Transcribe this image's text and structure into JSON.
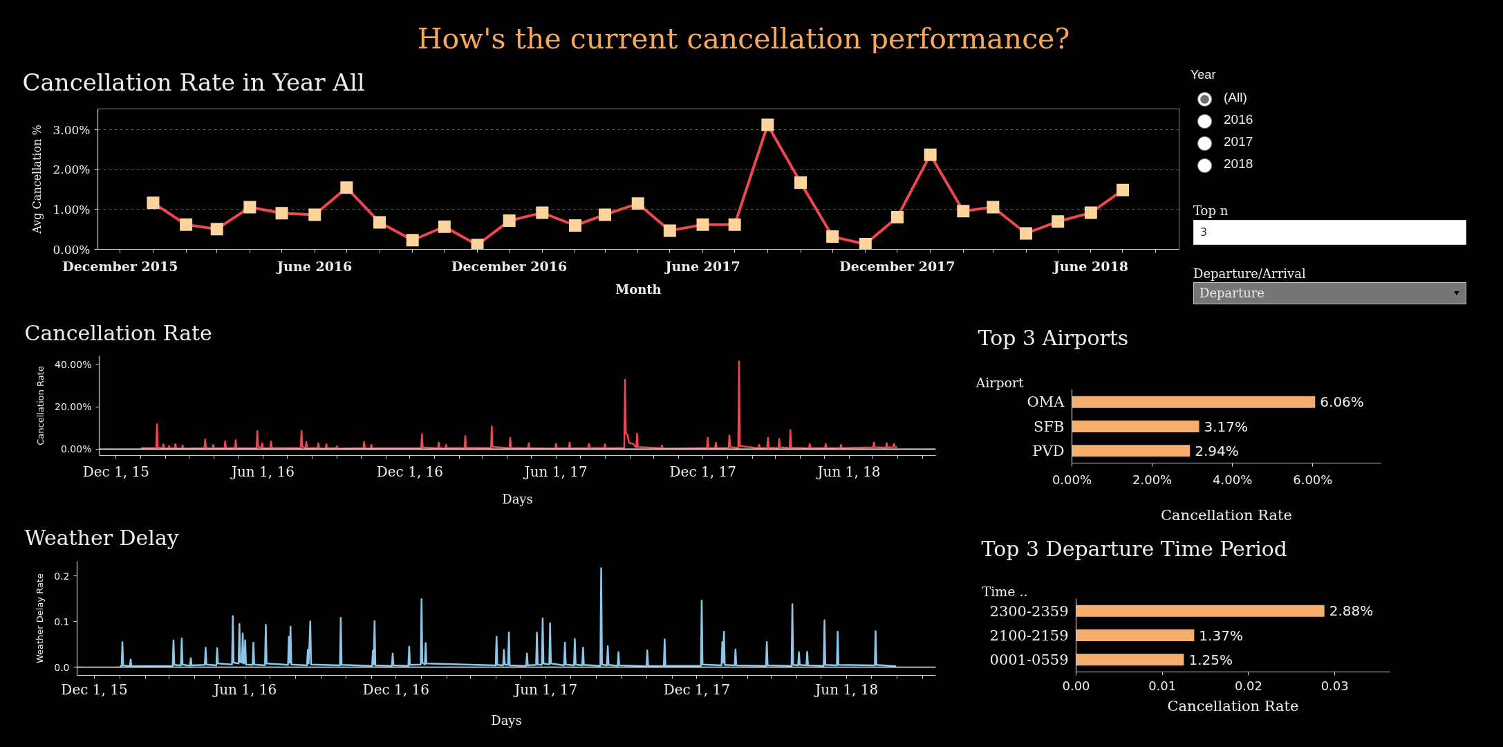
{
  "chart_data": [
    {
      "type": "other",
      "title": "How's the current cancellation performance?"
    },
    {
      "type": "line",
      "title": "Cancellation Rate in Year All",
      "xlabel": "Month",
      "ylabel": "Avg Cancellation %",
      "x": [
        "2016-01",
        "2016-02",
        "2016-03",
        "2016-04",
        "2016-05",
        "2016-06",
        "2016-07",
        "2016-08",
        "2016-09",
        "2016-10",
        "2016-11",
        "2016-12",
        "2017-01",
        "2017-02",
        "2017-03",
        "2017-04",
        "2017-05",
        "2017-06",
        "2017-07",
        "2017-08",
        "2017-09",
        "2017-10",
        "2017-11",
        "2017-12",
        "2018-01",
        "2018-02",
        "2018-03",
        "2018-04",
        "2018-05",
        "2018-06",
        "2018-07"
      ],
      "series": [
        {
          "color": "#f0474f",
          "colors": [
            "#fdd59c",
            "#fdd59c",
            "#fdd59c",
            "#fdd59c",
            "#fdd59c",
            "#fdd59c",
            "#fdd59c",
            "#fdd59c",
            "#fdd59c",
            "#fdd59c",
            "#fdd59c",
            "#fdd59c",
            "#fdd59c",
            "#fdd59c",
            "#fdd59c",
            "#fdd59c",
            "#fdd59c",
            "#fdd59c",
            "#fdd59c",
            "#fdd59c",
            "#fdd59c",
            "#fdd59c",
            "#fdd59c",
            "#fdd59c",
            "#fdd59c",
            "#fdd59c",
            "#fdd59c",
            "#fdd59c",
            "#fdd59c",
            "#fdd59c",
            "#fdd59c"
          ],
          "values": [
            1.17,
            0.62,
            0.51,
            1.06,
            0.91,
            0.87,
            1.55,
            0.68,
            0.23,
            0.57,
            0.11,
            0.72,
            0.92,
            0.6,
            0.87,
            1.15,
            0.47,
            0.62,
            0.62,
            3.13,
            1.68,
            0.32,
            0.13,
            0.81,
            2.38,
            0.96,
            1.06,
            0.4,
            0.7,
            0.92,
            1.49
          ]
        }
      ],
      "marker": "square",
      "grid": "y",
      "xlim": [
        "2015-11-10",
        "2018-08-23"
      ],
      "xticks": [
        {
          "value": "2015-12",
          "label": "December 2015"
        },
        {
          "value": "2016-01",
          "label": null
        },
        {
          "value": "2016-02",
          "label": null
        },
        {
          "value": "2016-03",
          "label": null
        },
        {
          "value": "2016-04",
          "label": null
        },
        {
          "value": "2016-05",
          "label": null
        },
        {
          "value": "2016-06",
          "label": "June 2016"
        },
        {
          "value": "2016-07",
          "label": null
        },
        {
          "value": "2016-08",
          "label": null
        },
        {
          "value": "2016-09",
          "label": null
        },
        {
          "value": "2016-10",
          "label": null
        },
        {
          "value": "2016-11",
          "label": null
        },
        {
          "value": "2016-12",
          "label": "December 2016"
        },
        {
          "value": "2017-01",
          "label": null
        },
        {
          "value": "2017-02",
          "label": null
        },
        {
          "value": "2017-03",
          "label": null
        },
        {
          "value": "2017-04",
          "label": null
        },
        {
          "value": "2017-05",
          "label": null
        },
        {
          "value": "2017-06",
          "label": "June 2017"
        },
        {
          "value": "2017-07",
          "label": null
        },
        {
          "value": "2017-08",
          "label": null
        },
        {
          "value": "2017-09",
          "label": null
        },
        {
          "value": "2017-10",
          "label": null
        },
        {
          "value": "2017-11",
          "label": null
        },
        {
          "value": "2017-12",
          "label": "December 2017"
        },
        {
          "value": "2018-01",
          "label": null
        },
        {
          "value": "2018-02",
          "label": null
        },
        {
          "value": "2018-03",
          "label": null
        },
        {
          "value": "2018-04",
          "label": null
        },
        {
          "value": "2018-05",
          "label": null
        },
        {
          "value": "2018-06",
          "label": "June 2018"
        },
        {
          "value": "2018-07",
          "label": null
        },
        {
          "value": "2018-08",
          "label": null
        }
      ],
      "ylim": [
        0,
        3.53
      ],
      "yticks": [
        {
          "value": 0,
          "label": "0.00%"
        },
        {
          "value": 1,
          "label": "1.00%"
        },
        {
          "value": 2,
          "label": "2.00%"
        },
        {
          "value": 3,
          "label": "3.00%"
        }
      ]
    },
    {
      "type": "other",
      "annotations": [
        "Year",
        "(All)",
        "2016",
        "2017",
        "2018",
        "Top n",
        "3",
        "Departure/Arrival",
        "Departure"
      ]
    },
    {
      "type": "line",
      "title": "Cancellation Rate",
      "xlabel": "Days",
      "ylabel": "Cancellation Rate",
      "series": [
        {
          "color": "#f0474f",
          "x": [
            "2016-01-01",
            "2016-01-20",
            "2016-01-21",
            "2016-01-22",
            "2016-01-28",
            "2016-01-29",
            "2016-01-30",
            "2016-02-04",
            "2016-02-05",
            "2016-02-06",
            "2016-02-12",
            "2016-02-13",
            "2016-02-14",
            "2016-02-21",
            "2016-02-22",
            "2016-02-23",
            "2016-03-20",
            "2016-03-21",
            "2016-03-22",
            "2016-03-30",
            "2016-03-31",
            "2016-04-01",
            "2016-04-14",
            "2016-04-15",
            "2016-04-16",
            "2016-04-27",
            "2016-04-28",
            "2016-04-29",
            "2016-05-24",
            "2016-05-25",
            "2016-05-26",
            "2016-05-30",
            "2016-05-31",
            "2016-06-01",
            "2016-06-10",
            "2016-06-11",
            "2016-06-12",
            "2016-07-18",
            "2016-07-19",
            "2016-07-20",
            "2016-07-24",
            "2016-07-25",
            "2016-07-26",
            "2016-08-08",
            "2016-08-09",
            "2016-08-10",
            "2016-08-18",
            "2016-08-19",
            "2016-08-20",
            "2016-08-31",
            "2016-09-01",
            "2016-09-02",
            "2016-10-04",
            "2016-10-05",
            "2016-10-06",
            "2016-10-13",
            "2016-10-14",
            "2016-10-15",
            "2016-12-15",
            "2016-12-16",
            "2016-12-17",
            "2017-01-05",
            "2017-01-06",
            "2017-01-07",
            "2017-01-14",
            "2017-01-15",
            "2017-01-16",
            "2017-02-07",
            "2017-02-08",
            "2017-02-09",
            "2017-03-12",
            "2017-03-13",
            "2017-03-14",
            "2017-04-04",
            "2017-04-05",
            "2017-04-06",
            "2017-04-27",
            "2017-04-28",
            "2017-04-29",
            "2017-05-31",
            "2017-06-01",
            "2017-06-02",
            "2017-06-17",
            "2017-06-18",
            "2017-06-19",
            "2017-07-11",
            "2017-07-12",
            "2017-07-13",
            "2017-07-31",
            "2017-08-01",
            "2017-08-02",
            "2017-08-25",
            "2017-08-26",
            "2017-08-27",
            "2017-08-29",
            "2017-08-31",
            "2017-09-05",
            "2017-09-09",
            "2017-09-10",
            "2017-09-11",
            "2017-10-10",
            "2017-10-11",
            "2017-10-12",
            "2017-12-06",
            "2017-12-07",
            "2017-12-08",
            "2017-12-16",
            "2017-12-17",
            "2017-12-18",
            "2018-01-02",
            "2018-01-03",
            "2018-01-04",
            "2018-01-14",
            "2018-01-15",
            "2018-01-16",
            "2018-02-08",
            "2018-02-09",
            "2018-02-10",
            "2018-02-19",
            "2018-02-20",
            "2018-02-21",
            "2018-03-05",
            "2018-03-06",
            "2018-03-07",
            "2018-03-19",
            "2018-03-20",
            "2018-03-21",
            "2018-04-12",
            "2018-04-13",
            "2018-04-14",
            "2018-05-02",
            "2018-05-03",
            "2018-05-04",
            "2018-05-21",
            "2018-05-22",
            "2018-05-23",
            "2018-07-01",
            "2018-07-02",
            "2018-07-03",
            "2018-07-17",
            "2018-07-18",
            "2018-07-19",
            "2018-07-26",
            "2018-07-27",
            "2018-07-28",
            "2018-07-31"
          ],
          "values": [
            0.5,
            0.6,
            11.8,
            0.8,
            0.4,
            2.3,
            0.5,
            0.3,
            1.4,
            0.4,
            0.5,
            2.3,
            0.3,
            0.4,
            1.7,
            0.3,
            0.5,
            4.5,
            0.6,
            0.3,
            2.0,
            0.4,
            0.5,
            3.7,
            0.4,
            0.6,
            4.2,
            0.5,
            0.4,
            8.5,
            1.0,
            0.6,
            2.8,
            0.5,
            0.4,
            3.7,
            0.6,
            0.5,
            8.7,
            1.2,
            0.5,
            3.4,
            0.4,
            0.6,
            2.8,
            0.4,
            0.3,
            2.3,
            0.5,
            0.4,
            1.4,
            0.3,
            0.5,
            3.4,
            0.4,
            0.3,
            2.0,
            0.4,
            0.5,
            7.0,
            0.8,
            0.4,
            3.1,
            0.6,
            0.3,
            2.0,
            0.5,
            0.6,
            6.2,
            0.7,
            0.5,
            10.7,
            1.1,
            0.4,
            5.4,
            0.6,
            0.4,
            2.8,
            0.5,
            0.3,
            2.5,
            0.4,
            0.5,
            3.1,
            0.4,
            0.4,
            2.5,
            0.6,
            0.5,
            2.3,
            0.4,
            0.6,
            32.7,
            7.5,
            6.8,
            3.0,
            2.5,
            0.8,
            7.3,
            1.0,
            0.4,
            1.7,
            0.3,
            0.5,
            5.4,
            0.6,
            0.4,
            3.1,
            0.5,
            0.6,
            6.5,
            1.0,
            0.5,
            41.4,
            1.5,
            0.4,
            2.0,
            0.5,
            0.6,
            5.4,
            0.7,
            0.5,
            4.8,
            0.8,
            0.6,
            9.0,
            0.7,
            0.4,
            2.5,
            0.6,
            0.5,
            2.5,
            0.4,
            0.6,
            2.0,
            0.5,
            0.8,
            3.1,
            0.9,
            0.7,
            2.8,
            0.8,
            0.9,
            2.5,
            1.0,
            0.9
          ]
        }
      ],
      "xlim": [
        "2015-11-10",
        "2018-09-17"
      ],
      "xticks": [
        {
          "value": "2015-12-01",
          "label": "Dec 1, 15"
        },
        {
          "value": "2016-01-01",
          "label": null
        },
        {
          "value": "2016-02-01",
          "label": null
        },
        {
          "value": "2016-03-01",
          "label": null
        },
        {
          "value": "2016-04-01",
          "label": null
        },
        {
          "value": "2016-05-01",
          "label": null
        },
        {
          "value": "2016-06-01",
          "label": "Jun 1, 16"
        },
        {
          "value": "2016-07-01",
          "label": null
        },
        {
          "value": "2016-08-01",
          "label": null
        },
        {
          "value": "2016-09-01",
          "label": null
        },
        {
          "value": "2016-10-01",
          "label": null
        },
        {
          "value": "2016-11-01",
          "label": null
        },
        {
          "value": "2016-12-01",
          "label": "Dec 1, 16"
        },
        {
          "value": "2017-01-01",
          "label": null
        },
        {
          "value": "2017-02-01",
          "label": null
        },
        {
          "value": "2017-03-01",
          "label": null
        },
        {
          "value": "2017-04-01",
          "label": null
        },
        {
          "value": "2017-05-01",
          "label": null
        },
        {
          "value": "2017-06-01",
          "label": "Jun 1, 17"
        },
        {
          "value": "2017-07-01",
          "label": null
        },
        {
          "value": "2017-08-01",
          "label": null
        },
        {
          "value": "2017-09-01",
          "label": null
        },
        {
          "value": "2017-10-01",
          "label": null
        },
        {
          "value": "2017-11-01",
          "label": null
        },
        {
          "value": "2017-12-01",
          "label": "Dec 1, 17"
        },
        {
          "value": "2018-01-01",
          "label": null
        },
        {
          "value": "2018-02-01",
          "label": null
        },
        {
          "value": "2018-03-01",
          "label": null
        },
        {
          "value": "2018-04-01",
          "label": null
        },
        {
          "value": "2018-05-01",
          "label": null
        },
        {
          "value": "2018-06-01",
          "label": "Jun 1, 18"
        },
        {
          "value": "2018-07-01",
          "label": null
        },
        {
          "value": "2018-08-01",
          "label": null
        },
        {
          "value": "2018-09-01",
          "label": null
        }
      ],
      "ylim": [
        -3,
        44
      ],
      "yticks": [
        {
          "value": 0,
          "label": "0.00%"
        },
        {
          "value": 20,
          "label": "20.00%"
        },
        {
          "value": 40,
          "label": "40.00%"
        }
      ],
      "ref_lines": [
        {
          "axis": "y",
          "value": 0,
          "color": "#ffffff"
        }
      ]
    },
    {
      "type": "bar",
      "orientation": "horizontal",
      "title": "Top 3 Airports",
      "ylabel": "Airport",
      "xlabel": "Cancellation Rate",
      "categories": [
        "OMA",
        "SFB",
        "PVD"
      ],
      "values": [
        6.06,
        3.17,
        2.94
      ],
      "value_labels": [
        "6.06%",
        "3.17%",
        "2.94%"
      ],
      "color": "#f4ad6c",
      "xlim": [
        0,
        7.7
      ],
      "xticks": [
        {
          "value": 0,
          "label": "0.00%"
        },
        {
          "value": 2,
          "label": "2.00%"
        },
        {
          "value": 4,
          "label": "4.00%"
        },
        {
          "value": 6,
          "label": "6.00%"
        }
      ]
    },
    {
      "type": "line",
      "title": "Weather Delay",
      "xlabel": "Days",
      "ylabel": "Weather Delay Rate",
      "series": [
        {
          "color": "#8cc6e8",
          "x": [
            "2016-01-01",
            "2016-01-03",
            "2016-01-04",
            "2016-01-05",
            "2016-01-13",
            "2016-01-14",
            "2016-01-15",
            "2016-03-05",
            "2016-03-06",
            "2016-03-07",
            "2016-03-15",
            "2016-03-16",
            "2016-03-17",
            "2016-03-26",
            "2016-03-27",
            "2016-03-28",
            "2016-04-13",
            "2016-04-14",
            "2016-04-15",
            "2016-04-27",
            "2016-04-28",
            "2016-04-29",
            "2016-05-16",
            "2016-05-17",
            "2016-05-18",
            "2016-05-24",
            "2016-05-25",
            "2016-05-26",
            "2016-05-28",
            "2016-05-29",
            "2016-05-30",
            "2016-05-31",
            "2016-06-01",
            "2016-06-02",
            "2016-06-10",
            "2016-06-11",
            "2016-06-12",
            "2016-06-25",
            "2016-06-26",
            "2016-06-27",
            "2016-07-23",
            "2016-07-24",
            "2016-07-25",
            "2016-07-26",
            "2016-07-27",
            "2016-08-15",
            "2016-08-16",
            "2016-08-17",
            "2016-08-19",
            "2016-08-20",
            "2016-09-24",
            "2016-09-25",
            "2016-09-26",
            "2016-11-02",
            "2016-11-03",
            "2016-11-04",
            "2016-11-05",
            "2016-11-06",
            "2016-11-26",
            "2016-11-27",
            "2016-11-28",
            "2016-12-16",
            "2016-12-17",
            "2016-12-18",
            "2016-12-31",
            "2017-01-01",
            "2017-01-02",
            "2017-01-05",
            "2017-01-06",
            "2017-01-07",
            "2017-04-01",
            "2017-04-02",
            "2017-04-03",
            "2017-04-10",
            "2017-04-11",
            "2017-04-12",
            "2017-04-16",
            "2017-04-17",
            "2017-04-18",
            "2017-05-08",
            "2017-05-09",
            "2017-05-10",
            "2017-05-20",
            "2017-05-21",
            "2017-05-22",
            "2017-05-27",
            "2017-05-28",
            "2017-05-29",
            "2017-06-05",
            "2017-06-06",
            "2017-06-07",
            "2017-06-23",
            "2017-06-24",
            "2017-06-25",
            "2017-07-05",
            "2017-07-06",
            "2017-07-07",
            "2017-07-15",
            "2017-07-16",
            "2017-07-17",
            "2017-08-06",
            "2017-08-07",
            "2017-08-08",
            "2017-08-14",
            "2017-08-15",
            "2017-08-16",
            "2017-08-27",
            "2017-08-28",
            "2017-08-29",
            "2017-10-01",
            "2017-10-02",
            "2017-10-03",
            "2017-10-22",
            "2017-10-23",
            "2017-10-24",
            "2017-12-06",
            "2017-12-07",
            "2017-12-08",
            "2017-12-31",
            "2018-01-01",
            "2018-01-02",
            "2018-01-03",
            "2018-01-04",
            "2018-01-16",
            "2018-01-17",
            "2018-01-18",
            "2018-02-23",
            "2018-02-24",
            "2018-02-25",
            "2018-03-26",
            "2018-03-27",
            "2018-03-28",
            "2018-04-03",
            "2018-04-04",
            "2018-04-05",
            "2018-04-13",
            "2018-04-14",
            "2018-04-15",
            "2018-05-04",
            "2018-05-05",
            "2018-05-06",
            "2018-05-20",
            "2018-05-21",
            "2018-05-22",
            "2018-07-05",
            "2018-07-06",
            "2018-07-07",
            "2018-07-31"
          ],
          "values": [
            0.002,
            0.002,
            0.055,
            0.004,
            0.002,
            0.017,
            0.002,
            0.003,
            0.059,
            0.005,
            0.004,
            0.063,
            0.006,
            0.003,
            0.02,
            0.004,
            0.005,
            0.043,
            0.006,
            0.004,
            0.042,
            0.008,
            0.006,
            0.112,
            0.01,
            0.008,
            0.095,
            0.012,
            0.01,
            0.074,
            0.008,
            0.01,
            0.059,
            0.006,
            0.005,
            0.054,
            0.006,
            0.004,
            0.093,
            0.008,
            0.005,
            0.067,
            0.01,
            0.089,
            0.006,
            0.004,
            0.038,
            0.008,
            0.1,
            0.006,
            0.004,
            0.108,
            0.005,
            0.003,
            0.036,
            0.006,
            0.101,
            0.004,
            0.003,
            0.03,
            0.004,
            0.003,
            0.045,
            0.005,
            0.006,
            0.149,
            0.01,
            0.006,
            0.053,
            0.008,
            0.004,
            0.067,
            0.005,
            0.004,
            0.038,
            0.006,
            0.005,
            0.076,
            0.004,
            0.003,
            0.03,
            0.004,
            0.005,
            0.076,
            0.006,
            0.005,
            0.107,
            0.008,
            0.006,
            0.096,
            0.008,
            0.004,
            0.054,
            0.006,
            0.004,
            0.062,
            0.006,
            0.004,
            0.043,
            0.005,
            0.003,
            0.217,
            0.006,
            0.004,
            0.046,
            0.005,
            0.003,
            0.033,
            0.004,
            0.002,
            0.037,
            0.003,
            0.002,
            0.061,
            0.003,
            0.003,
            0.146,
            0.006,
            0.004,
            0.055,
            0.01,
            0.078,
            0.005,
            0.004,
            0.039,
            0.004,
            0.003,
            0.055,
            0.004,
            0.003,
            0.138,
            0.005,
            0.004,
            0.033,
            0.005,
            0.004,
            0.034,
            0.004,
            0.003,
            0.103,
            0.005,
            0.004,
            0.078,
            0.005,
            0.004,
            0.079,
            0.005,
            0.002
          ]
        }
      ],
      "xlim": [
        "2015-11-10",
        "2018-09-17"
      ],
      "xticks": [
        {
          "value": "2015-12-01",
          "label": "Dec 1, 15"
        },
        {
          "value": "2016-01-01",
          "label": null
        },
        {
          "value": "2016-02-01",
          "label": null
        },
        {
          "value": "2016-03-01",
          "label": null
        },
        {
          "value": "2016-04-01",
          "label": null
        },
        {
          "value": "2016-05-01",
          "label": null
        },
        {
          "value": "2016-06-01",
          "label": "Jun 1, 16"
        },
        {
          "value": "2016-07-01",
          "label": null
        },
        {
          "value": "2016-08-01",
          "label": null
        },
        {
          "value": "2016-09-01",
          "label": null
        },
        {
          "value": "2016-10-01",
          "label": null
        },
        {
          "value": "2016-11-01",
          "label": null
        },
        {
          "value": "2016-12-01",
          "label": "Dec 1, 16"
        },
        {
          "value": "2017-01-01",
          "label": null
        },
        {
          "value": "2017-02-01",
          "label": null
        },
        {
          "value": "2017-03-01",
          "label": null
        },
        {
          "value": "2017-04-01",
          "label": null
        },
        {
          "value": "2017-05-01",
          "label": null
        },
        {
          "value": "2017-06-01",
          "label": "Jun 1, 17"
        },
        {
          "value": "2017-07-01",
          "label": null
        },
        {
          "value": "2017-08-01",
          "label": null
        },
        {
          "value": "2017-09-01",
          "label": null
        },
        {
          "value": "2017-10-01",
          "label": null
        },
        {
          "value": "2017-11-01",
          "label": null
        },
        {
          "value": "2017-12-01",
          "label": "Dec 1, 17"
        },
        {
          "value": "2018-01-01",
          "label": null
        },
        {
          "value": "2018-02-01",
          "label": null
        },
        {
          "value": "2018-03-01",
          "label": null
        },
        {
          "value": "2018-04-01",
          "label": null
        },
        {
          "value": "2018-05-01",
          "label": null
        },
        {
          "value": "2018-06-01",
          "label": "Jun 1, 18"
        },
        {
          "value": "2018-07-01",
          "label": null
        },
        {
          "value": "2018-08-01",
          "label": null
        },
        {
          "value": "2018-09-01",
          "label": null
        }
      ],
      "ylim": [
        -0.018,
        0.232
      ],
      "yticks": [
        {
          "value": 0,
          "label": "0.0"
        },
        0.1,
        0.2
      ],
      "ref_lines": [
        {
          "axis": "y",
          "value": 0,
          "color": "#ffffff"
        }
      ]
    },
    {
      "type": "bar",
      "orientation": "horizontal",
      "title": "Top 3 Departure Time Period",
      "ylabel": "Time ..",
      "xlabel": "Cancellation Rate",
      "categories": [
        "2300-2359",
        "2100-2159",
        "0001-0559"
      ],
      "values": [
        0.0288,
        0.0137,
        0.0125
      ],
      "value_labels": [
        "2.88%",
        "1.37%",
        "1.25%"
      ],
      "color": "#f4ad6c",
      "xlim": [
        0,
        0.0364
      ],
      "xticks": [
        {
          "value": 0,
          "label": "0.00"
        },
        0.01,
        0.02,
        0.03
      ]
    }
  ]
}
